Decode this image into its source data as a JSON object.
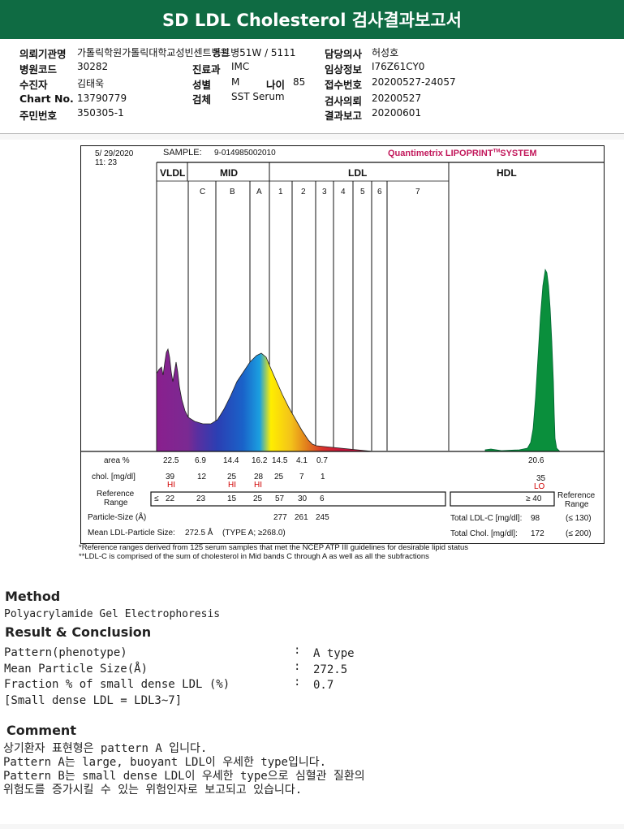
{
  "report": {
    "title": "SD LDL Cholesterol 검사결과보고서"
  },
  "header": {
    "requesting_org_label": "의뢰기관명",
    "requesting_org": "가톨릭학원가톨릭대학교성빈센트병원",
    "ward": "동트병51W / 5111",
    "doctor_label": "담당의사",
    "doctor": "허성호",
    "hospital_code_label": "병원코드",
    "hospital_code": "30282",
    "dept_label": "진료과",
    "dept": "IMC",
    "clinical_info_label": "임상정보",
    "clinical_info": "I76Z61CY0",
    "patient_label": "수진자",
    "patient": "김태욱",
    "sex_label": "성별",
    "sex": "M",
    "age_label": "나이",
    "age": "85",
    "receipt_no_label": "접수번호",
    "receipt_no": "20200527-24057",
    "chart_no_label": "Chart No.",
    "chart_no": "13790779",
    "specimen_label": "검체",
    "specimen": "SST Serum",
    "test_request_label": "검사의뢰",
    "test_request": "20200527",
    "resident_no_label": "주민번호",
    "resident_no": "350305-1",
    "result_report_label": "결과보고",
    "result_report": "20200601"
  },
  "scan": {
    "date": "5/ 29/2020",
    "time": "11: 23",
    "sample_label": "SAMPLE:",
    "sample_id": "9-014985002010",
    "system_prefix": "Quantimetrix LIPOPRINT",
    "system_tm": "TM",
    "system_suffix": "SYSTEM",
    "bands": {
      "vldl": "VLDL",
      "mid": "MID",
      "ldl": "LDL",
      "hdl": "HDL"
    },
    "sub_bands": [
      "C",
      "B",
      "A",
      "1",
      "2",
      "3",
      "4",
      "5",
      "6",
      "7"
    ],
    "row_labels": {
      "area": "area %",
      "chol": "chol. [mg/dl]",
      "ref_range_1": "Reference",
      "ref_range_2": "Range",
      "particle": "Particle-Size (Å)",
      "mean": "Mean LDL-Particle Size:"
    },
    "area_values": [
      "22.5",
      "6.9",
      "14.4",
      "16.2",
      "14.5",
      "4.1",
      "0.7"
    ],
    "hdl_area": "20.6",
    "chol_values": [
      "39",
      "12",
      "25",
      "28",
      "25",
      "7",
      "1"
    ],
    "chol_flags": [
      "HI",
      "",
      "HI",
      "HI",
      "",
      "",
      ""
    ],
    "hdl_chol": "35",
    "hdl_flag": "LO",
    "ref_prefix": "≤",
    "ref_values": [
      "22",
      "23",
      "15",
      "25",
      "57",
      "30",
      "6"
    ],
    "hdl_ref": "≥ 40",
    "ref_right_1": "Reference",
    "ref_right_2": "Range",
    "particle_sizes": [
      "277",
      "261",
      "245"
    ],
    "mean_value": "272.5 Å",
    "mean_type": "(TYPE A; ≥268.0)",
    "total_ldl_label": "Total LDL-C [mg/dl]:",
    "total_ldl": "98",
    "total_ldl_range": "(≤ 130)",
    "total_chol_label": "Total Chol. [mg/dl]:",
    "total_chol": "172",
    "total_chol_range": "(≤ 200)",
    "footnote_1": "*Reference ranges derived from 125 serum samples that met the NCEP ATP III guidelines for desirable lipid status",
    "footnote_2": "**LDL-C is comprised of the sum of cholesterol in Mid bands C through A as well as all the subfractions"
  },
  "method": {
    "heading": "Method",
    "text": "Polyacrylamide Gel Electrophoresis"
  },
  "result": {
    "heading": "Result & Conclusion",
    "rows": [
      {
        "label": "Pattern(phenotype)",
        "value": "A type"
      },
      {
        "label": "Mean Particle Size(Å)",
        "value": "272.5"
      },
      {
        "label": "Fraction % of small dense LDL (%)",
        "value": "0.7"
      }
    ],
    "note": "[Small dense LDL = LDL3~7]"
  },
  "comment": {
    "heading": "Comment",
    "lines": [
      "상기환자 표현형은 pattern A 입니다.",
      "Pattern A는 large, buoyant LDL이 우세한 type입니다.",
      "Pattern B는 small dense LDL이 우세한 type으로 심혈관 질환의",
      "위험도를 증가시킬 수 있는 위험인자로 보고되고 있습니다."
    ]
  }
}
